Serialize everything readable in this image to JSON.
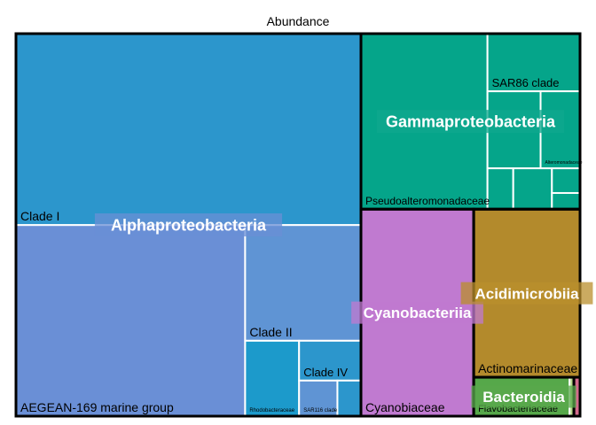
{
  "chart_data": {
    "type": "treemap",
    "title": "Abundance",
    "groups": [
      {
        "name": "Alphaproteobacteria",
        "color": "#6a8fd6",
        "leaves": [
          {
            "name": "Clade I",
            "value": 27.6,
            "color": "#2c96cc"
          },
          {
            "name": "AEGEAN-169 marine group",
            "value": 18.3,
            "color": "#6a8fd6"
          },
          {
            "name": "Clade II",
            "value": 5.6,
            "color": "#5f94d4"
          },
          {
            "name": "Rhodobacteraceae",
            "value": 1.7,
            "color": "#1c9acb"
          },
          {
            "name": "Clade IV",
            "value": 1.03,
            "color": "#2c96cc"
          },
          {
            "name": "SAR116 clade",
            "value": 0.57,
            "color": "#5f94d4"
          },
          {
            "name": "",
            "value": 0.35,
            "color": "#2c96cc"
          }
        ]
      },
      {
        "name": "Gammaproteobacteria",
        "color": "#0fa88e",
        "leaves": [
          {
            "name": "Pseudoalteromonadaceae",
            "value": 9.28,
            "color": "#05a58a"
          },
          {
            "name": "SAR86 clade",
            "value": 2.23,
            "color": "#05a58a"
          },
          {
            "name": "",
            "value": 1.71,
            "color": "#05a58a"
          },
          {
            "name": "Alteromonadaceae",
            "value": 1.27,
            "color": "#05a58a"
          },
          {
            "name": "",
            "value": 0.44,
            "color": "#05a58a"
          },
          {
            "name": "",
            "value": 0.66,
            "color": "#05a58a"
          },
          {
            "name": "",
            "value": 0.29,
            "color": "#05a58a"
          },
          {
            "name": "",
            "value": 0.19,
            "color": "#05a58a"
          }
        ]
      },
      {
        "name": "Cyanobacteriia",
        "color": "#c07ad0",
        "leaves": [
          {
            "name": "Cyanobiaceae",
            "value": 9.75,
            "color": "#c07ad0"
          }
        ]
      },
      {
        "name": "Acidimicrobiia",
        "color": "#b98f2c",
        "leaves": [
          {
            "name": "Actinomarinaceae",
            "value": 7.47,
            "color": "#b38a2c"
          }
        ]
      },
      {
        "name": "Bacteroidia",
        "color": "#5aa84c",
        "leaves": [
          {
            "name": "Flavobacteriaceae",
            "value": 1.56,
            "color": "#56a84a"
          },
          {
            "name": "",
            "value": 0.07,
            "color": "#b7d98a"
          }
        ]
      },
      {
        "name": "",
        "color": "#d36b8c",
        "leaves": [
          {
            "name": "",
            "value": 0.1,
            "color": "#d36b8c"
          }
        ]
      }
    ]
  }
}
